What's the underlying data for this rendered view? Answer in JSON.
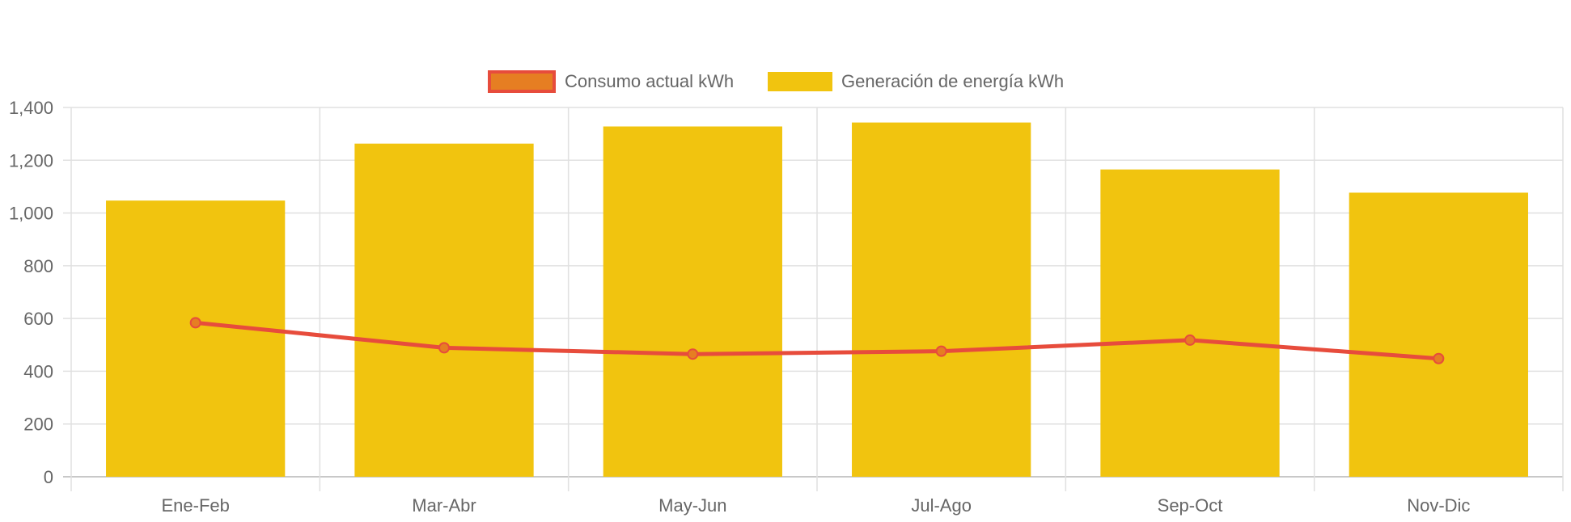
{
  "chart_data": {
    "type": "bar",
    "categories": [
      "Ene-Feb",
      "Mar-Abr",
      "May-Jun",
      "Jul-Ago",
      "Sep-Oct",
      "Nov-Dic"
    ],
    "series": [
      {
        "name": "Consumo actual kWh",
        "type": "line",
        "values": [
          584,
          489,
          465,
          476,
          518,
          448
        ],
        "color": "#e74c3c",
        "point_color": "#e67e22"
      },
      {
        "name": "Generación de energía kWh",
        "type": "bar",
        "values": [
          1047,
          1263,
          1328,
          1343,
          1165,
          1077
        ],
        "color": "#f1c40f"
      }
    ],
    "yticks": [
      "0",
      "200",
      "400",
      "600",
      "800",
      "1,000",
      "1,200",
      "1,400"
    ],
    "ylim": [
      0,
      1400
    ],
    "grid": true,
    "legend_position": "top"
  }
}
